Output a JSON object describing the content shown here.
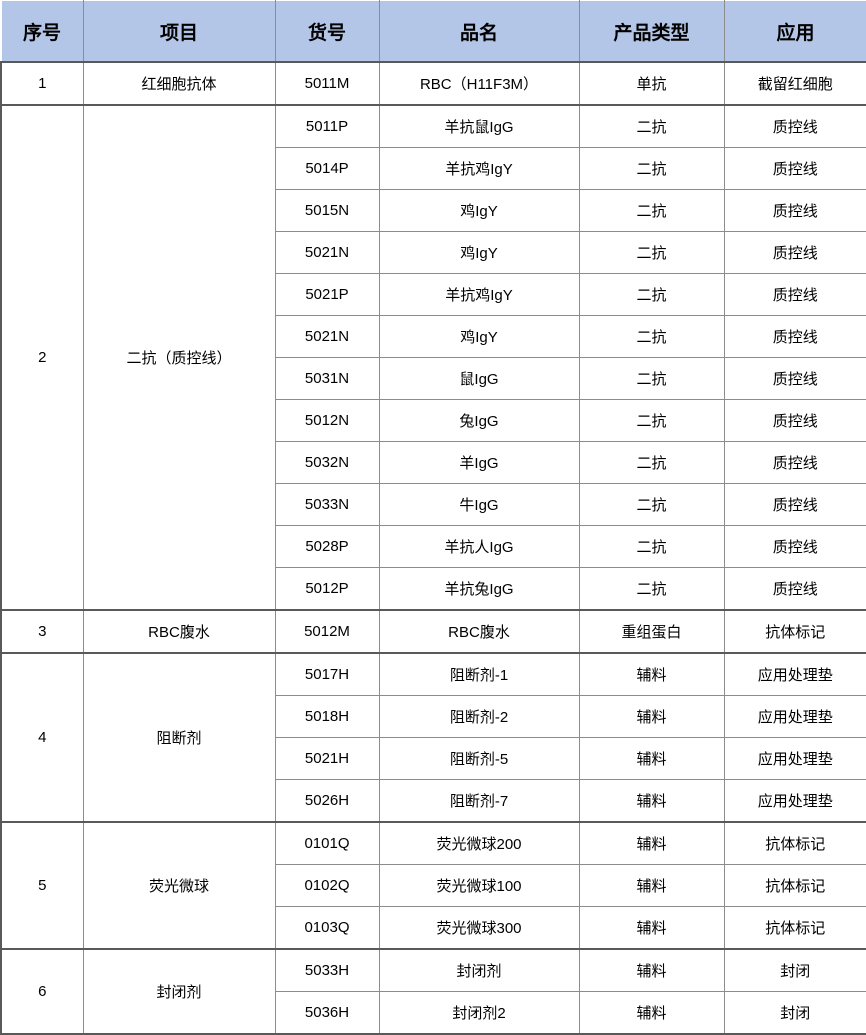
{
  "table": {
    "columns": [
      "序号",
      "项目",
      "货号",
      "品名",
      "产品类型",
      "应用"
    ],
    "groups": [
      {
        "index": "1",
        "item": "红细胞抗体",
        "rows": [
          [
            "5011M",
            "RBC（H11F3M）",
            "单抗",
            "截留红细胞"
          ]
        ]
      },
      {
        "index": "2",
        "item": "二抗（质控线）",
        "rows": [
          [
            "5011P",
            "羊抗鼠IgG",
            "二抗",
            "质控线"
          ],
          [
            "5014P",
            "羊抗鸡IgY",
            "二抗",
            "质控线"
          ],
          [
            "5015N",
            "鸡IgY",
            "二抗",
            "质控线"
          ],
          [
            "5021N",
            "鸡IgY",
            "二抗",
            "质控线"
          ],
          [
            "5021P",
            "羊抗鸡IgY",
            "二抗",
            "质控线"
          ],
          [
            "5021N",
            "鸡IgY",
            "二抗",
            "质控线"
          ],
          [
            "5031N",
            "鼠IgG",
            "二抗",
            "质控线"
          ],
          [
            "5012N",
            "兔IgG",
            "二抗",
            "质控线"
          ],
          [
            "5032N",
            "羊IgG",
            "二抗",
            "质控线"
          ],
          [
            "5033N",
            "牛IgG",
            "二抗",
            "质控线"
          ],
          [
            "5028P",
            "羊抗人IgG",
            "二抗",
            "质控线"
          ],
          [
            "5012P",
            "羊抗兔IgG",
            "二抗",
            "质控线"
          ]
        ]
      },
      {
        "index": "3",
        "item": "RBC腹水",
        "rows": [
          [
            "5012M",
            "RBC腹水",
            "重组蛋白",
            "抗体标记"
          ]
        ]
      },
      {
        "index": "4",
        "item": "阻断剂",
        "rows": [
          [
            "5017H",
            "阻断剂-1",
            "辅料",
            "应用处理垫"
          ],
          [
            "5018H",
            "阻断剂-2",
            "辅料",
            "应用处理垫"
          ],
          [
            "5021H",
            "阻断剂-5",
            "辅料",
            "应用处理垫"
          ],
          [
            "5026H",
            "阻断剂-7",
            "辅料",
            "应用处理垫"
          ]
        ]
      },
      {
        "index": "5",
        "item": "荧光微球",
        "rows": [
          [
            "0101Q",
            "荧光微球200",
            "辅料",
            "抗体标记"
          ],
          [
            "0102Q",
            "荧光微球100",
            "辅料",
            "抗体标记"
          ],
          [
            "0103Q",
            "荧光微球300",
            "辅料",
            "抗体标记"
          ]
        ]
      },
      {
        "index": "6",
        "item": "封闭剂",
        "rows": [
          [
            "5033H",
            "封闭剂",
            "辅料",
            "封闭"
          ],
          [
            "5036H",
            "封闭剂2",
            "辅料",
            "封闭"
          ]
        ]
      }
    ],
    "colors": {
      "header_bg": "#b4c6e7",
      "grid_line": "#8c8c8c",
      "strong_line": "#595959",
      "text": "#000000"
    }
  }
}
